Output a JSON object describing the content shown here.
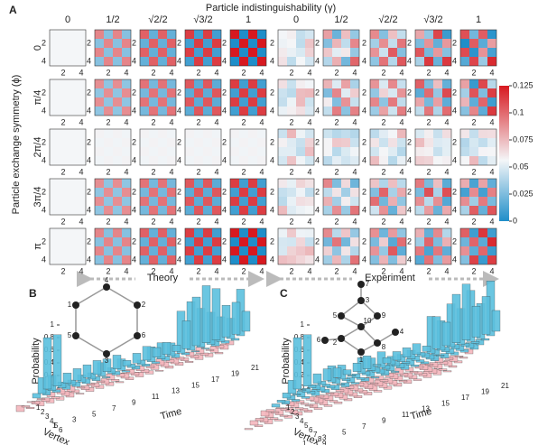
{
  "panel_a": {
    "label": "A",
    "title": "Particle indistinguishability (γ)",
    "y_title": "Particle exchange symmetry (ϕ)",
    "columns": [
      "0",
      "1/2",
      "√2/2",
      "√3/2",
      "1"
    ],
    "rows": [
      "0",
      "π/4",
      "2π/4",
      "3π/4",
      "π"
    ],
    "axis_ticks": [
      "2",
      "4"
    ],
    "theory": "Theory",
    "experiment": "Experiment",
    "colorbar_lim": [
      0,
      0.125
    ],
    "colorbar_ticks": [
      0,
      0.025,
      0.05,
      0.075,
      0.1,
      0.125
    ]
  },
  "panel_b": {
    "label": "B",
    "z_title": "Probability",
    "x_title": "Time",
    "y_title": "Vertex",
    "z_ticks": [
      0,
      0.2,
      0.4,
      0.6,
      0.8,
      1
    ],
    "time_ticks": [
      1,
      3,
      5,
      7,
      9,
      11,
      13,
      15,
      17,
      19,
      21
    ],
    "vertex_ticks": [
      1,
      2,
      3,
      4,
      5,
      6
    ],
    "nodes": [
      "1",
      "2",
      "3",
      "4",
      "5",
      "6"
    ]
  },
  "panel_c": {
    "label": "C",
    "z_title": "Probability",
    "x_title": "Time",
    "y_title": "Vertex",
    "z_ticks": [
      0,
      0.2,
      0.4,
      0.6,
      0.8,
      1
    ],
    "time_ticks": [
      1,
      3,
      5,
      7,
      9,
      11,
      13,
      15,
      17,
      19,
      21
    ],
    "vertex_ticks": [
      1,
      2,
      3,
      4,
      5,
      6,
      7,
      8,
      9,
      10
    ],
    "nodes": [
      "1",
      "2",
      "3",
      "4",
      "5",
      "6",
      "7",
      "8",
      "9",
      "10"
    ]
  }
}
